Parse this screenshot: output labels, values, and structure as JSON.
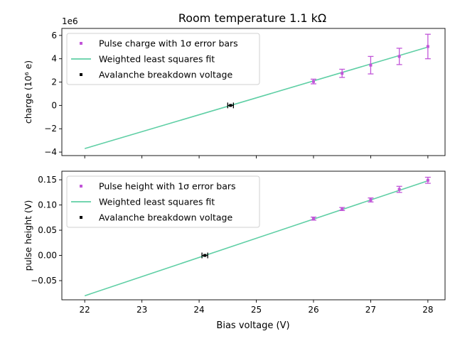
{
  "figure": {
    "title": "Room temperature 1.1 kΩ",
    "xlabel": "Bias voltage (V)"
  },
  "colors": {
    "points": "#c155d8",
    "fit": "#5fcfa5",
    "breakdown": "#000000"
  },
  "chart_data": [
    {
      "type": "scatter",
      "ylabel": "charge (10⁶ e)",
      "offset_text": "1e6",
      "xlim": [
        21.6,
        28.3
      ],
      "ylim": [
        -4.3,
        6.6
      ],
      "xticks": [
        22,
        23,
        24,
        25,
        26,
        27,
        28
      ],
      "yticks": [
        -4,
        -2,
        0,
        2,
        4,
        6
      ],
      "ytick_labels": [
        "−4",
        "−2",
        "0",
        "2",
        "4",
        "6"
      ],
      "show_xticklabels": false,
      "grid": false,
      "legend_position": "upper-left",
      "legend": [
        {
          "kind": "point",
          "label": "Pulse charge with 1σ error bars"
        },
        {
          "kind": "line",
          "label": "Weighted least squares fit"
        },
        {
          "kind": "breakdown",
          "label": "Avalanche breakdown voltage"
        }
      ],
      "series": [
        {
          "kind": "errorbar",
          "x": [
            26.0,
            26.5,
            27.0,
            27.5,
            28.0
          ],
          "y": [
            2.05,
            2.75,
            3.45,
            4.2,
            5.05
          ],
          "yerr": [
            0.2,
            0.35,
            0.75,
            0.7,
            1.05
          ]
        }
      ],
      "fit_line": {
        "x": [
          22.0,
          28.0
        ],
        "y": [
          -3.7,
          5.0
        ]
      },
      "breakdown": {
        "x": 24.55,
        "y": 0,
        "xerr": 0.05
      }
    },
    {
      "type": "scatter",
      "ylabel": "pulse height (V)",
      "xlim": [
        21.6,
        28.3
      ],
      "ylim": [
        -0.088,
        0.167
      ],
      "xticks": [
        22,
        23,
        24,
        25,
        26,
        27,
        28
      ],
      "yticks": [
        -0.05,
        0.0,
        0.05,
        0.1,
        0.15
      ],
      "ytick_labels": [
        "−0.05",
        "0.00",
        "0.05",
        "0.10",
        "0.15"
      ],
      "show_xticklabels": true,
      "grid": false,
      "legend_position": "upper-left",
      "legend": [
        {
          "kind": "point",
          "label": "Pulse height with 1σ error bars"
        },
        {
          "kind": "line",
          "label": "Weighted least squares fit"
        },
        {
          "kind": "breakdown",
          "label": "Avalanche breakdown voltage"
        }
      ],
      "series": [
        {
          "kind": "errorbar",
          "x": [
            26.0,
            26.5,
            27.0,
            27.5,
            28.0
          ],
          "y": [
            0.073,
            0.092,
            0.11,
            0.131,
            0.149
          ],
          "yerr": [
            0.003,
            0.003,
            0.004,
            0.006,
            0.006
          ]
        }
      ],
      "fit_line": {
        "x": [
          22.0,
          28.0
        ],
        "y": [
          -0.08,
          0.148
        ]
      },
      "breakdown": {
        "x": 24.1,
        "y": 0,
        "xerr": 0.05
      }
    }
  ]
}
